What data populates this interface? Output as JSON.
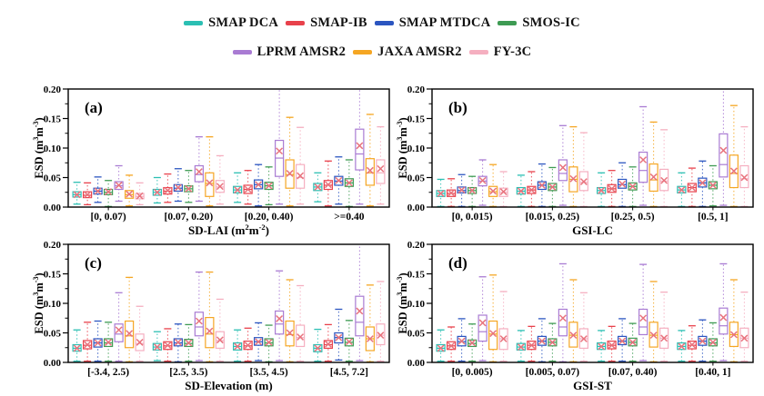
{
  "legend": {
    "rows": [
      [
        "SMAP DCA",
        "SMAP-IB",
        "SMAP MTDCA",
        "SMOS-IC"
      ],
      [
        "LPRM AMSR2",
        "JAXA AMSR2",
        "FY-3C"
      ]
    ]
  },
  "series": [
    {
      "name": "SMAP DCA",
      "color": "#2BBFB3"
    },
    {
      "name": "SMAP-IB",
      "color": "#E8414B"
    },
    {
      "name": "SMAP MTDCA",
      "color": "#2B55C0"
    },
    {
      "name": "SMOS-IC",
      "color": "#3E9B53"
    },
    {
      "name": "LPRM AMSR2",
      "color": "#A97BD3"
    },
    {
      "name": "JAXA AMSR2",
      "color": "#F5A623"
    },
    {
      "name": "FY-3C",
      "color": "#F5AFC0"
    }
  ],
  "chart_common": {
    "type": "box",
    "ylabel_parts": [
      {
        "t": "ESD (m"
      },
      {
        "t": "3",
        "sup": true
      },
      {
        "t": "m"
      },
      {
        "t": "-3",
        "sup": true
      },
      {
        "t": ")"
      }
    ],
    "yticks": [
      {
        "label": "0.00",
        "value": 0.0
      },
      {
        "label": "0.05",
        "value": 0.05
      },
      {
        "label": "0.10",
        "value": 0.1
      },
      {
        "label": "0.15",
        "value": 0.15
      },
      {
        "label": "0.20",
        "value": 0.2
      }
    ],
    "ylim": [
      0,
      0.2
    ],
    "box_stat_order": [
      "whisker_low",
      "q1",
      "median",
      "q3",
      "whisker_high",
      "mean"
    ],
    "mean_marker": "x",
    "mean_marker_color": "#E8737D",
    "grid": false,
    "legend_position": "top"
  },
  "chart_data": [
    {
      "id": "a",
      "panel_label": "(a)",
      "xlabel_parts": [
        {
          "t": "SD-LAI (m"
        },
        {
          "t": "2",
          "sup": true
        },
        {
          "t": "m"
        },
        {
          "t": "-2",
          "sup": true
        },
        {
          "t": ")"
        }
      ],
      "categories": [
        "[0, 0.07)",
        "[0.07, 0.20)",
        "[0.20, 0.40)",
        ">=0.40"
      ],
      "values": [
        [
          [
            0.005,
            0.017,
            0.021,
            0.026,
            0.042,
            0.021
          ],
          [
            0.007,
            0.02,
            0.025,
            0.03,
            0.05,
            0.025
          ],
          [
            0.008,
            0.024,
            0.029,
            0.035,
            0.058,
            0.029
          ],
          [
            0.009,
            0.028,
            0.034,
            0.04,
            0.058,
            0.034
          ]
        ],
        [
          [
            0.004,
            0.016,
            0.02,
            0.026,
            0.041,
            0.021
          ],
          [
            0.008,
            0.022,
            0.027,
            0.033,
            0.056,
            0.028
          ],
          [
            0.005,
            0.023,
            0.03,
            0.037,
            0.062,
            0.03
          ],
          [
            0.002,
            0.03,
            0.037,
            0.045,
            0.078,
            0.038
          ]
        ],
        [
          [
            0.008,
            0.022,
            0.027,
            0.032,
            0.051,
            0.027
          ],
          [
            0.01,
            0.027,
            0.032,
            0.038,
            0.065,
            0.033
          ],
          [
            0.002,
            0.031,
            0.038,
            0.046,
            0.072,
            0.038
          ],
          [
            0.005,
            0.037,
            0.044,
            0.052,
            0.085,
            0.045
          ]
        ],
        [
          [
            0.001,
            0.021,
            0.025,
            0.03,
            0.045,
            0.026
          ],
          [
            0.008,
            0.026,
            0.031,
            0.036,
            0.062,
            0.031
          ],
          [
            0.004,
            0.03,
            0.036,
            0.042,
            0.068,
            0.036
          ],
          [
            0.001,
            0.035,
            0.041,
            0.048,
            0.08,
            0.041
          ]
        ],
        [
          [
            0.01,
            0.03,
            0.036,
            0.043,
            0.07,
            0.037
          ],
          [
            0.01,
            0.043,
            0.055,
            0.07,
            0.119,
            0.06
          ],
          [
            0.005,
            0.052,
            0.083,
            0.113,
            0.2,
            0.095
          ],
          [
            0.005,
            0.063,
            0.09,
            0.132,
            0.2,
            0.104
          ]
        ],
        [
          [
            0.002,
            0.015,
            0.021,
            0.028,
            0.054,
            0.022
          ],
          [
            0.002,
            0.018,
            0.04,
            0.058,
            0.119,
            0.041
          ],
          [
            0.002,
            0.032,
            0.055,
            0.08,
            0.152,
            0.057
          ],
          [
            0.002,
            0.037,
            0.058,
            0.082,
            0.157,
            0.062
          ]
        ],
        [
          [
            0.004,
            0.014,
            0.018,
            0.023,
            0.041,
            0.019
          ],
          [
            0.005,
            0.025,
            0.034,
            0.045,
            0.087,
            0.035
          ],
          [
            0.005,
            0.032,
            0.05,
            0.072,
            0.135,
            0.053
          ],
          [
            0.005,
            0.04,
            0.058,
            0.08,
            0.136,
            0.065
          ]
        ]
      ]
    },
    {
      "id": "b",
      "panel_label": "(b)",
      "xlabel_parts": [
        {
          "t": "GSI-LC"
        }
      ],
      "categories": [
        "[0, 0.015)",
        "[0.015, 0.25)",
        "[0.25, 0.5)",
        "[0.5, 1]"
      ],
      "values": [
        [
          [
            0.001,
            0.018,
            0.023,
            0.028,
            0.047,
            0.023
          ],
          [
            0.001,
            0.022,
            0.027,
            0.033,
            0.054,
            0.027
          ],
          [
            0.001,
            0.023,
            0.028,
            0.033,
            0.058,
            0.028
          ],
          [
            0.001,
            0.024,
            0.029,
            0.035,
            0.058,
            0.029
          ]
        ],
        [
          [
            0.001,
            0.018,
            0.023,
            0.029,
            0.048,
            0.024
          ],
          [
            0.001,
            0.023,
            0.029,
            0.035,
            0.06,
            0.029
          ],
          [
            0.001,
            0.025,
            0.031,
            0.038,
            0.062,
            0.031
          ],
          [
            0.001,
            0.026,
            0.033,
            0.04,
            0.066,
            0.033
          ]
        ],
        [
          [
            0.001,
            0.024,
            0.028,
            0.034,
            0.055,
            0.029
          ],
          [
            0.001,
            0.03,
            0.037,
            0.043,
            0.073,
            0.037
          ],
          [
            0.001,
            0.032,
            0.038,
            0.047,
            0.075,
            0.039
          ],
          [
            0.001,
            0.034,
            0.041,
            0.049,
            0.078,
            0.041
          ]
        ],
        [
          [
            0.001,
            0.023,
            0.028,
            0.033,
            0.052,
            0.028
          ],
          [
            0.001,
            0.028,
            0.034,
            0.04,
            0.067,
            0.034
          ],
          [
            0.001,
            0.029,
            0.035,
            0.041,
            0.068,
            0.035
          ],
          [
            0.002,
            0.031,
            0.037,
            0.043,
            0.07,
            0.037
          ]
        ],
        [
          [
            0.003,
            0.036,
            0.044,
            0.052,
            0.08,
            0.045
          ],
          [
            0.003,
            0.045,
            0.057,
            0.08,
            0.138,
            0.067
          ],
          [
            0.003,
            0.042,
            0.062,
            0.093,
            0.17,
            0.08
          ],
          [
            0.003,
            0.051,
            0.072,
            0.124,
            0.2,
            0.096
          ]
        ],
        [
          [
            0.001,
            0.018,
            0.026,
            0.035,
            0.072,
            0.027
          ],
          [
            0.001,
            0.026,
            0.047,
            0.068,
            0.136,
            0.048
          ],
          [
            0.001,
            0.027,
            0.046,
            0.073,
            0.144,
            0.051
          ],
          [
            0.001,
            0.033,
            0.057,
            0.088,
            0.172,
            0.061
          ]
        ],
        [
          [
            0.001,
            0.018,
            0.025,
            0.032,
            0.06,
            0.026
          ],
          [
            0.001,
            0.028,
            0.042,
            0.06,
            0.126,
            0.043
          ],
          [
            0.001,
            0.028,
            0.044,
            0.064,
            0.131,
            0.045
          ],
          [
            0.001,
            0.033,
            0.048,
            0.07,
            0.136,
            0.05
          ]
        ]
      ]
    },
    {
      "id": "c",
      "panel_label": "(c)",
      "xlabel_parts": [
        {
          "t": "SD-Elevation (m)"
        }
      ],
      "categories": [
        "[-3.4, 2.5)",
        "[2.5, 3.5)",
        "[3.5, 4.5)",
        "[4.5, 7.2]"
      ],
      "values": [
        [
          [
            0.002,
            0.019,
            0.024,
            0.03,
            0.055,
            0.024
          ],
          [
            0.003,
            0.021,
            0.026,
            0.032,
            0.052,
            0.026
          ],
          [
            0.002,
            0.021,
            0.027,
            0.033,
            0.055,
            0.027
          ],
          [
            0.002,
            0.018,
            0.024,
            0.03,
            0.056,
            0.024
          ]
        ],
        [
          [
            0.002,
            0.023,
            0.029,
            0.037,
            0.068,
            0.03
          ],
          [
            0.002,
            0.022,
            0.028,
            0.035,
            0.057,
            0.029
          ],
          [
            0.002,
            0.022,
            0.028,
            0.036,
            0.058,
            0.029
          ],
          [
            0.002,
            0.024,
            0.03,
            0.037,
            0.064,
            0.031
          ]
        ],
        [
          [
            0.002,
            0.026,
            0.033,
            0.04,
            0.07,
            0.033
          ],
          [
            0.001,
            0.028,
            0.033,
            0.04,
            0.065,
            0.034
          ],
          [
            0.003,
            0.029,
            0.035,
            0.042,
            0.067,
            0.035
          ],
          [
            0.004,
            0.033,
            0.042,
            0.05,
            0.09,
            0.042
          ]
        ],
        [
          [
            0.002,
            0.027,
            0.033,
            0.04,
            0.068,
            0.034
          ],
          [
            0.002,
            0.027,
            0.032,
            0.039,
            0.064,
            0.033
          ],
          [
            0.001,
            0.028,
            0.033,
            0.04,
            0.063,
            0.034
          ],
          [
            0.002,
            0.028,
            0.034,
            0.041,
            0.071,
            0.035
          ]
        ],
        [
          [
            0.002,
            0.035,
            0.048,
            0.065,
            0.118,
            0.055
          ],
          [
            0.003,
            0.045,
            0.06,
            0.085,
            0.153,
            0.07
          ],
          [
            0.003,
            0.048,
            0.065,
            0.087,
            0.155,
            0.074
          ],
          [
            0.003,
            0.045,
            0.068,
            0.112,
            0.2,
            0.087
          ]
        ],
        [
          [
            0.001,
            0.025,
            0.045,
            0.07,
            0.144,
            0.049
          ],
          [
            0.001,
            0.025,
            0.048,
            0.076,
            0.153,
            0.053
          ],
          [
            0.001,
            0.028,
            0.047,
            0.07,
            0.14,
            0.05
          ],
          [
            0.001,
            0.02,
            0.04,
            0.06,
            0.131,
            0.04
          ]
        ],
        [
          [
            0.002,
            0.02,
            0.032,
            0.048,
            0.095,
            0.034
          ],
          [
            0.002,
            0.024,
            0.037,
            0.052,
            0.107,
            0.038
          ],
          [
            0.002,
            0.027,
            0.042,
            0.063,
            0.13,
            0.043
          ],
          [
            0.002,
            0.03,
            0.046,
            0.065,
            0.137,
            0.046
          ]
        ]
      ]
    },
    {
      "id": "d",
      "panel_label": "(d)",
      "xlabel_parts": [
        {
          "t": "GSI-ST"
        }
      ],
      "categories": [
        "[0, 0.005)",
        "[0.005, 0.07)",
        "[0.07, 0.40)",
        "[0.40, 1]"
      ],
      "values": [
        [
          [
            0.002,
            0.019,
            0.024,
            0.03,
            0.055,
            0.024
          ],
          [
            0.002,
            0.021,
            0.026,
            0.032,
            0.054,
            0.026
          ],
          [
            0.002,
            0.022,
            0.027,
            0.033,
            0.054,
            0.027
          ],
          [
            0.002,
            0.022,
            0.027,
            0.033,
            0.054,
            0.027
          ]
        ],
        [
          [
            0.002,
            0.022,
            0.028,
            0.035,
            0.06,
            0.028
          ],
          [
            0.002,
            0.022,
            0.029,
            0.036,
            0.061,
            0.029
          ],
          [
            0.002,
            0.023,
            0.029,
            0.036,
            0.061,
            0.029
          ],
          [
            0.002,
            0.023,
            0.029,
            0.036,
            0.062,
            0.03
          ]
        ],
        [
          [
            0.002,
            0.028,
            0.035,
            0.044,
            0.074,
            0.036
          ],
          [
            0.001,
            0.029,
            0.036,
            0.044,
            0.074,
            0.036
          ],
          [
            0.002,
            0.03,
            0.036,
            0.044,
            0.074,
            0.036
          ],
          [
            0.002,
            0.029,
            0.036,
            0.044,
            0.072,
            0.036
          ]
        ],
        [
          [
            0.002,
            0.027,
            0.032,
            0.038,
            0.065,
            0.033
          ],
          [
            0.002,
            0.028,
            0.034,
            0.04,
            0.066,
            0.034
          ],
          [
            0.002,
            0.028,
            0.034,
            0.041,
            0.066,
            0.034
          ],
          [
            0.002,
            0.028,
            0.033,
            0.04,
            0.067,
            0.034
          ]
        ],
        [
          [
            0.003,
            0.036,
            0.052,
            0.08,
            0.145,
            0.067
          ],
          [
            0.001,
            0.045,
            0.06,
            0.09,
            0.167,
            0.075
          ],
          [
            0.003,
            0.047,
            0.06,
            0.09,
            0.166,
            0.075
          ],
          [
            0.003,
            0.048,
            0.062,
            0.092,
            0.167,
            0.076
          ]
        ],
        [
          [
            0.001,
            0.022,
            0.048,
            0.07,
            0.148,
            0.049
          ],
          [
            0.001,
            0.026,
            0.046,
            0.068,
            0.14,
            0.046
          ],
          [
            0.001,
            0.026,
            0.046,
            0.068,
            0.137,
            0.046
          ],
          [
            0.001,
            0.027,
            0.047,
            0.068,
            0.14,
            0.047
          ]
        ],
        [
          [
            0.002,
            0.022,
            0.04,
            0.057,
            0.12,
            0.04
          ],
          [
            0.002,
            0.024,
            0.04,
            0.057,
            0.118,
            0.04
          ],
          [
            0.002,
            0.024,
            0.041,
            0.058,
            0.119,
            0.041
          ],
          [
            0.002,
            0.025,
            0.041,
            0.058,
            0.119,
            0.041
          ]
        ]
      ]
    }
  ]
}
